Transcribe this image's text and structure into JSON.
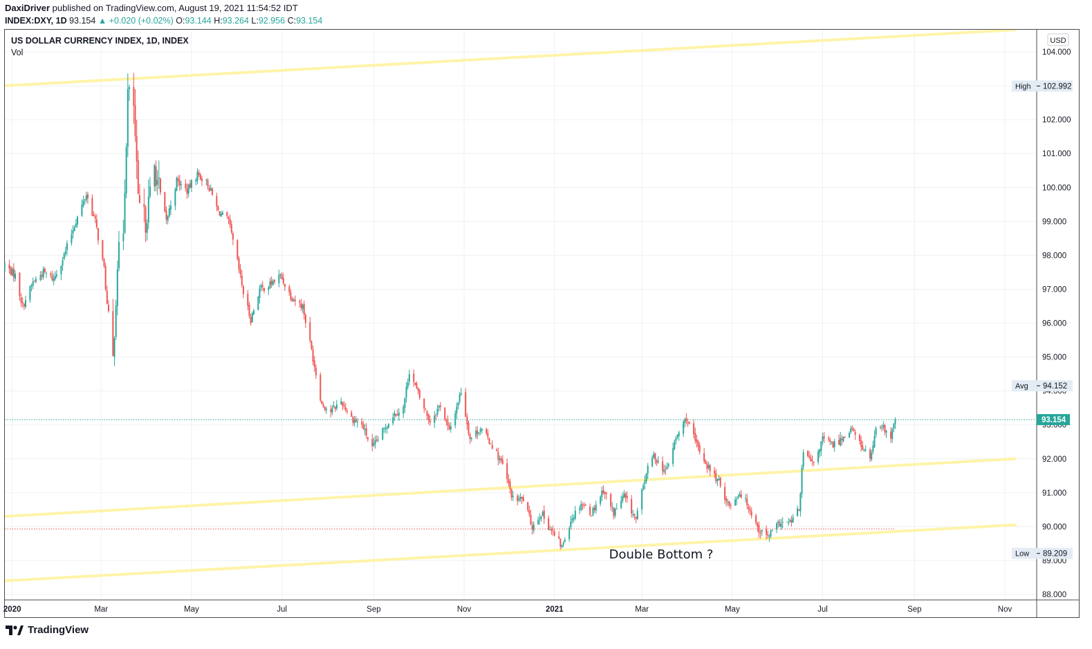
{
  "header": {
    "author": "DaxiDriver",
    "published": "published on TradingView.com, August 19, 2021 11:54:52 IDT",
    "symbol": "INDEX:DXY, 1D",
    "last": "93.154",
    "change": "▲ +0.020 (+0.02%)",
    "o_label": "O:",
    "o_value": "93.144",
    "h_label": "H:",
    "h_value": "93.264",
    "l_label": "L:",
    "l_value": "92.956",
    "c_label": "C:",
    "c_value": "93.154"
  },
  "chart_title": "US DOLLAR CURRENCY INDEX, 1D, INDEX",
  "vol_label": "Vol",
  "currency_label": "USD",
  "footer_brand": "TradingView",
  "colors": {
    "up": "#26a69a",
    "down": "#ef5350",
    "trendline": "#fff3a8",
    "last_price": "#26a69a",
    "grid": "#eef0f3"
  },
  "chart_data": {
    "type": "candlestick",
    "title": "US DOLLAR CURRENCY INDEX, 1D, INDEX",
    "ylim": [
      87.8,
      104.6
    ],
    "xlim": [
      "2019-12-27",
      "2021-11-22"
    ],
    "y_ticks": [
      "104.000",
      "103.000",
      "102.000",
      "101.000",
      "100.000",
      "99.000",
      "98.000",
      "97.000",
      "96.000",
      "95.000",
      "94.000",
      "93.000",
      "92.000",
      "91.000",
      "90.000",
      "89.000",
      "88.000"
    ],
    "x_ticks": [
      {
        "label": "2020",
        "date": "2020-01-01",
        "bold": true
      },
      {
        "label": "Mar",
        "date": "2020-03-01"
      },
      {
        "label": "May",
        "date": "2020-05-01"
      },
      {
        "label": "Jul",
        "date": "2020-07-01"
      },
      {
        "label": "Sep",
        "date": "2020-09-01"
      },
      {
        "label": "Nov",
        "date": "2020-11-01"
      },
      {
        "label": "2021",
        "date": "2021-01-01",
        "bold": true
      },
      {
        "label": "Mar",
        "date": "2021-03-01"
      },
      {
        "label": "May",
        "date": "2021-05-01"
      },
      {
        "label": "Jul",
        "date": "2021-07-01"
      },
      {
        "label": "Sep",
        "date": "2021-09-01"
      },
      {
        "label": "Nov",
        "date": "2021-11-01"
      }
    ],
    "price_path": [
      [
        "2019-12-27",
        97.7
      ],
      [
        "2020-01-03",
        97.4
      ],
      [
        "2020-01-08",
        96.5
      ],
      [
        "2020-01-15",
        97.2
      ],
      [
        "2020-01-22",
        97.5
      ],
      [
        "2020-01-29",
        97.3
      ],
      [
        "2020-02-05",
        98.0
      ],
      [
        "2020-02-12",
        98.9
      ],
      [
        "2020-02-20",
        99.8
      ],
      [
        "2020-02-26",
        99.0
      ],
      [
        "2020-03-03",
        97.6
      ],
      [
        "2020-03-06",
        96.0
      ],
      [
        "2020-03-09",
        94.9
      ],
      [
        "2020-03-12",
        97.8
      ],
      [
        "2020-03-16",
        98.8
      ],
      [
        "2020-03-19",
        102.8
      ],
      [
        "2020-03-23",
        102.4
      ],
      [
        "2020-03-26",
        99.5
      ],
      [
        "2020-03-31",
        99.0
      ],
      [
        "2020-04-06",
        100.6
      ],
      [
        "2020-04-14",
        99.0
      ],
      [
        "2020-04-21",
        100.2
      ],
      [
        "2020-04-28",
        99.9
      ],
      [
        "2020-05-05",
        100.4
      ],
      [
        "2020-05-12",
        100.1
      ],
      [
        "2020-05-19",
        99.3
      ],
      [
        "2020-05-26",
        99.0
      ],
      [
        "2020-06-01",
        97.8
      ],
      [
        "2020-06-05",
        96.9
      ],
      [
        "2020-06-10",
        96.1
      ],
      [
        "2020-06-16",
        97.0
      ],
      [
        "2020-06-22",
        97.1
      ],
      [
        "2020-06-30",
        97.4
      ],
      [
        "2020-07-07",
        96.8
      ],
      [
        "2020-07-15",
        96.5
      ],
      [
        "2020-07-21",
        95.2
      ],
      [
        "2020-07-28",
        93.6
      ],
      [
        "2020-08-03",
        93.4
      ],
      [
        "2020-08-10",
        93.7
      ],
      [
        "2020-08-17",
        93.2
      ],
      [
        "2020-08-24",
        93.0
      ],
      [
        "2020-08-31",
        92.3
      ],
      [
        "2020-09-07",
        92.8
      ],
      [
        "2020-09-14",
        93.3
      ],
      [
        "2020-09-21",
        93.5
      ],
      [
        "2020-09-25",
        94.6
      ],
      [
        "2020-10-02",
        93.8
      ],
      [
        "2020-10-09",
        93.1
      ],
      [
        "2020-10-16",
        93.6
      ],
      [
        "2020-10-22",
        92.8
      ],
      [
        "2020-10-30",
        94.0
      ],
      [
        "2020-11-05",
        92.6
      ],
      [
        "2020-11-12",
        92.9
      ],
      [
        "2020-11-20",
        92.4
      ],
      [
        "2020-11-27",
        91.8
      ],
      [
        "2020-12-04",
        90.8
      ],
      [
        "2020-12-11",
        90.8
      ],
      [
        "2020-12-17",
        90.0
      ],
      [
        "2020-12-23",
        90.4
      ],
      [
        "2020-12-31",
        89.8
      ],
      [
        "2021-01-06",
        89.4
      ],
      [
        "2021-01-12",
        90.2
      ],
      [
        "2021-01-19",
        90.7
      ],
      [
        "2021-01-26",
        90.4
      ],
      [
        "2021-02-03",
        91.1
      ],
      [
        "2021-02-10",
        90.4
      ],
      [
        "2021-02-17",
        90.9
      ],
      [
        "2021-02-25",
        90.2
      ],
      [
        "2021-03-04",
        91.6
      ],
      [
        "2021-03-09",
        92.1
      ],
      [
        "2021-03-17",
        91.6
      ],
      [
        "2021-03-24",
        92.6
      ],
      [
        "2021-03-31",
        93.2
      ],
      [
        "2021-04-06",
        92.5
      ],
      [
        "2021-04-14",
        91.8
      ],
      [
        "2021-04-22",
        91.3
      ],
      [
        "2021-04-29",
        90.6
      ],
      [
        "2021-05-06",
        91.0
      ],
      [
        "2021-05-12",
        90.6
      ],
      [
        "2021-05-19",
        89.9
      ],
      [
        "2021-05-25",
        89.7
      ],
      [
        "2021-06-02",
        90.1
      ],
      [
        "2021-06-09",
        90.1
      ],
      [
        "2021-06-15",
        90.5
      ],
      [
        "2021-06-18",
        92.2
      ],
      [
        "2021-06-25",
        91.8
      ],
      [
        "2021-07-01",
        92.6
      ],
      [
        "2021-07-08",
        92.4
      ],
      [
        "2021-07-14",
        92.6
      ],
      [
        "2021-07-20",
        92.9
      ],
      [
        "2021-07-27",
        92.4
      ],
      [
        "2021-08-02",
        92.0
      ],
      [
        "2021-08-06",
        92.8
      ],
      [
        "2021-08-11",
        92.9
      ],
      [
        "2021-08-16",
        92.6
      ],
      [
        "2021-08-19",
        93.154
      ]
    ],
    "trendlines": [
      {
        "from": [
          "2019-12-27",
          103.0
        ],
        "to": [
          "2021-11-08",
          104.65
        ]
      },
      {
        "from": [
          "2019-12-27",
          90.3
        ],
        "to": [
          "2021-11-08",
          92.0
        ]
      },
      {
        "from": [
          "2019-12-27",
          88.4
        ],
        "to": [
          "2021-11-08",
          90.05
        ]
      }
    ],
    "price_lines": [
      {
        "value": 93.154,
        "style": "dotted",
        "color": "#26a69a"
      },
      {
        "value": 89.93,
        "style": "dotted",
        "color": "#ef5350",
        "end": "2021-08-19"
      }
    ],
    "annotation": {
      "text": "Double Bottom ?",
      "date": "2021-03-14",
      "value": 89.1
    },
    "labels": [
      {
        "kind": "High",
        "value": 102.992,
        "text": "102.992"
      },
      {
        "kind": "Avg",
        "value": 94.152,
        "text": "94.152"
      },
      {
        "kind": "Last",
        "value": 93.154,
        "text": "93.154"
      },
      {
        "kind": "Low",
        "value": 89.209,
        "text": "89.209"
      }
    ]
  }
}
